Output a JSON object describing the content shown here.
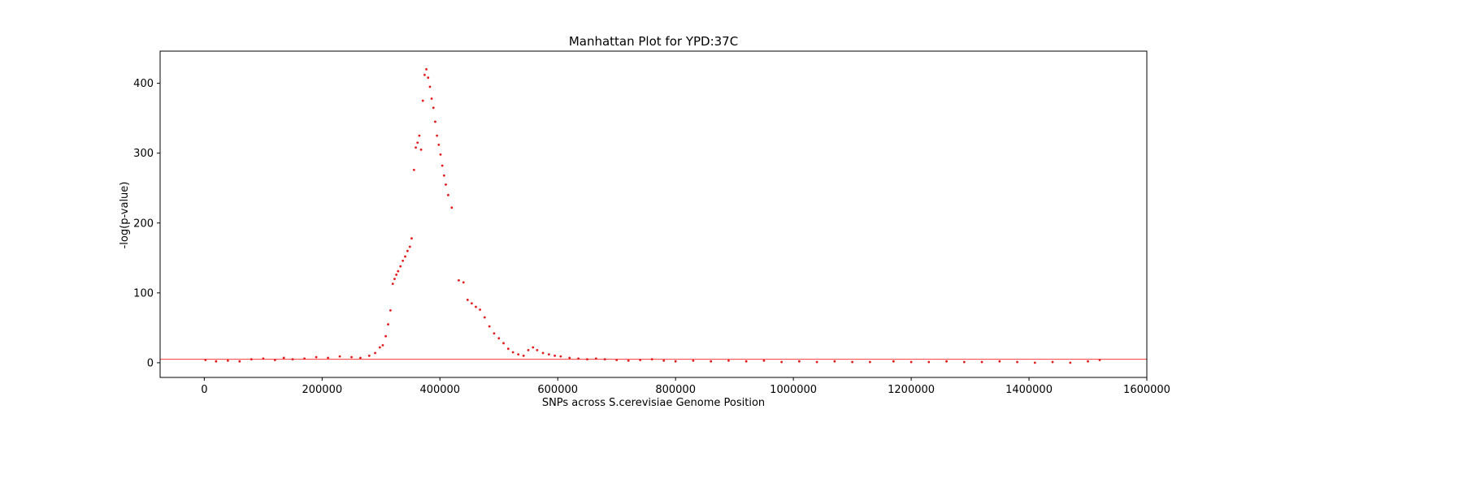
{
  "chart_data": {
    "type": "scatter",
    "title": "Manhattan Plot for YPD:37C",
    "xlabel": "SNPs across S.cerevisiae Genome Position",
    "ylabel": "-log(p-value)",
    "xlim": [
      -75000,
      1600000
    ],
    "ylim": [
      -21,
      446
    ],
    "xticks": [
      0,
      200000,
      400000,
      600000,
      800000,
      1000000,
      1200000,
      1400000,
      1600000
    ],
    "xtick_labels": [
      "0",
      "200000",
      "400000",
      "600000",
      "800000",
      "1000000",
      "1200000",
      "1400000",
      "1600000"
    ],
    "yticks": [
      0,
      100,
      200,
      300,
      400
    ],
    "ytick_labels": [
      "0",
      "100",
      "200",
      "300",
      "400"
    ],
    "threshold_line": 5,
    "grid": false,
    "legend": "none",
    "colors": {
      "points": "#e31a1c",
      "threshold": "#ff3b3b",
      "axis": "#000000"
    },
    "series": [
      {
        "points": [
          [
            2000,
            4
          ],
          [
            20000,
            2
          ],
          [
            40000,
            3
          ],
          [
            60000,
            2
          ],
          [
            80000,
            5
          ],
          [
            100000,
            6
          ],
          [
            120000,
            4
          ],
          [
            135000,
            7
          ],
          [
            150000,
            5
          ],
          [
            170000,
            6
          ],
          [
            190000,
            8
          ],
          [
            210000,
            7
          ],
          [
            230000,
            9
          ],
          [
            250000,
            8
          ],
          [
            265000,
            7
          ],
          [
            280000,
            10
          ],
          [
            290000,
            14
          ],
          [
            298000,
            22
          ],
          [
            303000,
            25
          ],
          [
            308000,
            38
          ],
          [
            312000,
            55
          ],
          [
            316000,
            75
          ],
          [
            320000,
            113
          ],
          [
            323000,
            120
          ],
          [
            326000,
            126
          ],
          [
            329000,
            131
          ],
          [
            333000,
            138
          ],
          [
            337000,
            146
          ],
          [
            341000,
            152
          ],
          [
            345000,
            160
          ],
          [
            349000,
            166
          ],
          [
            352000,
            178
          ],
          [
            356000,
            276
          ],
          [
            359000,
            308
          ],
          [
            362000,
            315
          ],
          [
            365000,
            325
          ],
          [
            368000,
            305
          ],
          [
            371000,
            375
          ],
          [
            374000,
            412
          ],
          [
            377000,
            420
          ],
          [
            380000,
            408
          ],
          [
            383000,
            395
          ],
          [
            386000,
            378
          ],
          [
            389000,
            365
          ],
          [
            392000,
            345
          ],
          [
            395000,
            325
          ],
          [
            398000,
            312
          ],
          [
            401000,
            298
          ],
          [
            404000,
            282
          ],
          [
            407000,
            268
          ],
          [
            410000,
            255
          ],
          [
            414000,
            240
          ],
          [
            420000,
            222
          ],
          [
            432000,
            118
          ],
          [
            440000,
            115
          ],
          [
            447000,
            90
          ],
          [
            454000,
            85
          ],
          [
            461000,
            80
          ],
          [
            468000,
            76
          ],
          [
            476000,
            65
          ],
          [
            484000,
            52
          ],
          [
            492000,
            42
          ],
          [
            500000,
            35
          ],
          [
            508000,
            28
          ],
          [
            516000,
            20
          ],
          [
            524000,
            15
          ],
          [
            533000,
            12
          ],
          [
            542000,
            10
          ],
          [
            550000,
            18
          ],
          [
            558000,
            22
          ],
          [
            565000,
            18
          ],
          [
            575000,
            14
          ],
          [
            585000,
            12
          ],
          [
            595000,
            10
          ],
          [
            605000,
            9
          ],
          [
            620000,
            7
          ],
          [
            635000,
            6
          ],
          [
            650000,
            5
          ],
          [
            665000,
            6
          ],
          [
            680000,
            5
          ],
          [
            700000,
            4
          ],
          [
            720000,
            3
          ],
          [
            740000,
            4
          ],
          [
            760000,
            5
          ],
          [
            780000,
            3
          ],
          [
            800000,
            2
          ],
          [
            830000,
            3
          ],
          [
            860000,
            2
          ],
          [
            890000,
            3
          ],
          [
            920000,
            2
          ],
          [
            950000,
            3
          ],
          [
            980000,
            1
          ],
          [
            1010000,
            2
          ],
          [
            1040000,
            1
          ],
          [
            1070000,
            2
          ],
          [
            1100000,
            1
          ],
          [
            1130000,
            1
          ],
          [
            1170000,
            2
          ],
          [
            1200000,
            1
          ],
          [
            1230000,
            1
          ],
          [
            1260000,
            2
          ],
          [
            1290000,
            1
          ],
          [
            1320000,
            1
          ],
          [
            1350000,
            2
          ],
          [
            1380000,
            1
          ],
          [
            1410000,
            0
          ],
          [
            1440000,
            1
          ],
          [
            1470000,
            0
          ],
          [
            1500000,
            2
          ],
          [
            1520000,
            4
          ]
        ]
      }
    ]
  }
}
